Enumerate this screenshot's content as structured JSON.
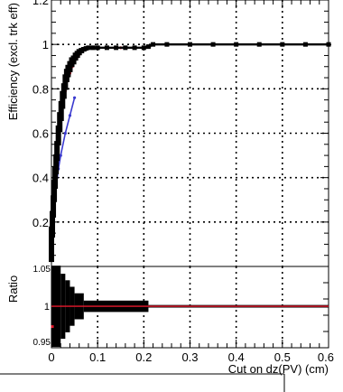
{
  "chart_data": [
    {
      "type": "line",
      "panel": "main",
      "ylabel": "Efficiency (excl. trk eff)",
      "xlim": [
        0,
        0.6
      ],
      "ylim": [
        0,
        1.2
      ],
      "grid": true,
      "y_ticks": [
        "0.2",
        "0.4",
        "0.6",
        "0.8",
        "1",
        "1.2"
      ],
      "colors": {
        "black_series": "#000000",
        "red_series": "#e8192c",
        "blue_series": "#3a3acf"
      },
      "series": [
        {
          "x": [
            0.0,
            0.002,
            0.004,
            0.006,
            0.008,
            0.01,
            0.012,
            0.015,
            0.018,
            0.021,
            0.024,
            0.027,
            0.03,
            0.033,
            0.036,
            0.04,
            0.044,
            0.048,
            0.052,
            0.056,
            0.06,
            0.065,
            0.07,
            0.075,
            0.08,
            0.09,
            0.1,
            0.12,
            0.14,
            0.16,
            0.18,
            0.2,
            0.21,
            0.22,
            0.25,
            0.3,
            0.35,
            0.4,
            0.45,
            0.5,
            0.55,
            0.6
          ],
          "y": [
            0.1,
            0.19,
            0.27,
            0.34,
            0.4,
            0.46,
            0.52,
            0.59,
            0.65,
            0.7,
            0.75,
            0.79,
            0.83,
            0.86,
            0.88,
            0.9,
            0.92,
            0.93,
            0.945,
            0.955,
            0.965,
            0.972,
            0.978,
            0.982,
            0.985,
            0.985,
            0.985,
            0.985,
            0.985,
            0.985,
            0.985,
            0.985,
            0.99,
            1.0,
            1.0,
            1.0,
            1.0,
            1.0,
            1.0,
            1.0,
            1.0,
            1.0
          ],
          "yerr": [
            0.08,
            0.06,
            0.05,
            0.05,
            0.05,
            0.045,
            0.045,
            0.045,
            0.045,
            0.045,
            0.04,
            0.035,
            0.035,
            0.03,
            0.028,
            0.025,
            0.022,
            0.02,
            0.018,
            0.016,
            0.014,
            0.012,
            0.01,
            0.008,
            0.007,
            0.006,
            0.005,
            0.004,
            0.004,
            0.004,
            0.004,
            0.004,
            0.003,
            0.002,
            0.002,
            0.002,
            0.002,
            0.002,
            0.002,
            0.002,
            0.002,
            0.002
          ]
        },
        {
          "x": [
            0.0,
            0.005,
            0.01,
            0.015,
            0.02,
            0.025,
            0.03,
            0.035,
            0.04,
            0.045,
            0.05,
            0.055,
            0.06,
            0.065,
            0.07,
            0.08,
            0.1,
            0.15,
            0.2,
            0.22,
            0.3,
            0.4,
            0.5,
            0.6
          ],
          "y": [
            0.12,
            0.3,
            0.44,
            0.56,
            0.65,
            0.73,
            0.79,
            0.84,
            0.87,
            0.9,
            0.92,
            0.94,
            0.955,
            0.97,
            0.978,
            0.985,
            0.985,
            0.985,
            0.985,
            1.0,
            1.0,
            1.0,
            1.0,
            1.0
          ]
        },
        {
          "x": [
            0.0,
            0.005,
            0.01,
            0.015,
            0.02,
            0.03,
            0.04,
            0.05
          ],
          "y": [
            0.15,
            0.26,
            0.36,
            0.44,
            0.5,
            0.6,
            0.68,
            0.76
          ]
        }
      ]
    },
    {
      "type": "line",
      "panel": "ratio",
      "xlabel": "Cut on dz(PV) (cm)",
      "ylabel": "Ratio",
      "xlim": [
        0,
        0.6
      ],
      "ylim": [
        0.95,
        1.0
      ],
      "grid": true,
      "x_ticks": [
        "0",
        "0.1",
        "0.2",
        "0.3",
        "0.4",
        "0.5",
        "0.6"
      ],
      "y_ticks": [
        "0.95",
        "1"
      ],
      "y_ticks_overlap_label": "1.05",
      "ratio_line": {
        "y": 0.9755
      },
      "red_marker": {
        "x": 0.002,
        "y": 0.963
      },
      "error_bands": [
        {
          "x": [
            0.0,
            0.02
          ],
          "half_height": 0.025
        },
        {
          "x": [
            0.02,
            0.03
          ],
          "half_height": 0.02
        },
        {
          "x": [
            0.03,
            0.04
          ],
          "half_height": 0.016
        },
        {
          "x": [
            0.04,
            0.05
          ],
          "half_height": 0.012
        },
        {
          "x": [
            0.05,
            0.07
          ],
          "half_height": 0.008
        },
        {
          "x": [
            0.07,
            0.21
          ],
          "half_height": 0.0035
        },
        {
          "x": [
            0.21,
            0.6
          ],
          "half_height": 0.0008
        }
      ]
    }
  ]
}
